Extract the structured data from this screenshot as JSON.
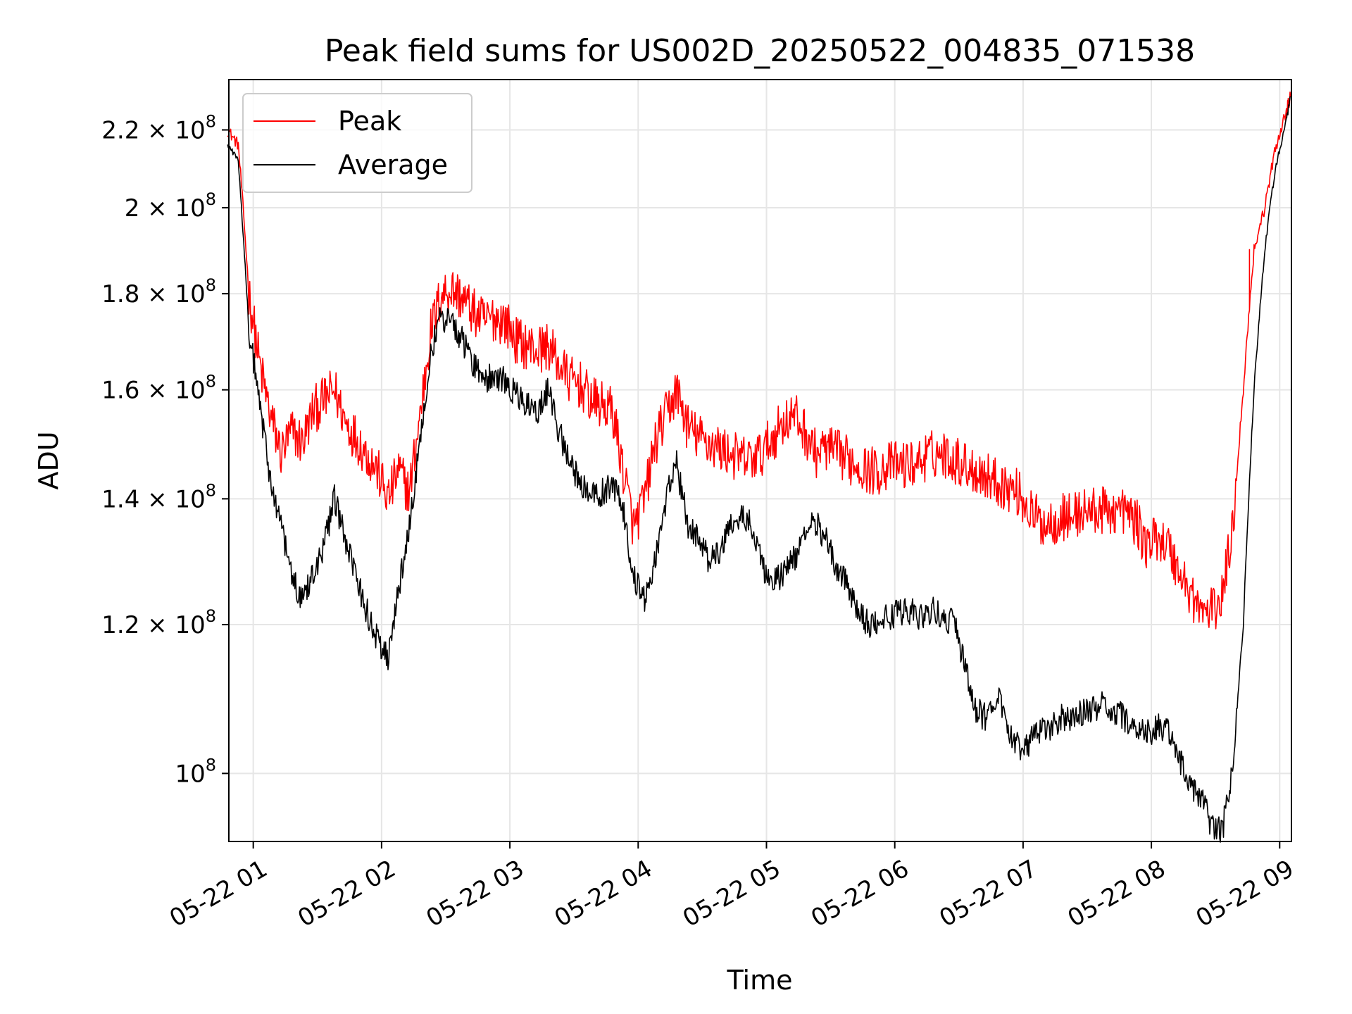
{
  "chart_data": {
    "type": "line",
    "title": "Peak field sums for US002D_20250522_004835_071538",
    "xlabel": "Time",
    "ylabel": "ADU",
    "yscale": "log",
    "ylim": [
      92000000,
      234000000
    ],
    "xlim": [
      "2025-05-22 00:48:35",
      "2025-05-22 09:05:30"
    ],
    "grid": true,
    "legend_position": "upper left",
    "x_ticks": [
      "05-22 01",
      "05-22 02",
      "05-22 03",
      "05-22 04",
      "05-22 05",
      "05-22 06",
      "05-22 07",
      "05-22 08",
      "05-22 09"
    ],
    "y_ticks": [
      {
        "value": 100000000,
        "mant": "",
        "base": "10",
        "exp": "8"
      },
      {
        "value": 120000000,
        "mant": "1.2 × ",
        "base": "10",
        "exp": "8"
      },
      {
        "value": 140000000,
        "mant": "1.4 × ",
        "base": "10",
        "exp": "8"
      },
      {
        "value": 160000000,
        "mant": "1.6 × ",
        "base": "10",
        "exp": "8"
      },
      {
        "value": 180000000,
        "mant": "1.8 × ",
        "base": "10",
        "exp": "8"
      },
      {
        "value": 200000000,
        "mant": "2 × ",
        "base": "10",
        "exp": "8"
      },
      {
        "value": 220000000,
        "mant": "2.2 × ",
        "base": "10",
        "exp": "8"
      }
    ],
    "x": [
      "00:48",
      "00:53",
      "00:58",
      "01:03",
      "01:08",
      "01:13",
      "01:18",
      "01:23",
      "01:28",
      "01:33",
      "01:38",
      "01:43",
      "01:48",
      "01:53",
      "01:58",
      "02:03",
      "02:08",
      "02:13",
      "02:18",
      "02:23",
      "02:28",
      "02:33",
      "02:38",
      "02:43",
      "02:48",
      "02:53",
      "02:58",
      "03:03",
      "03:08",
      "03:13",
      "03:18",
      "03:23",
      "03:28",
      "03:33",
      "03:38",
      "03:43",
      "03:48",
      "03:53",
      "03:58",
      "04:03",
      "04:08",
      "04:13",
      "04:18",
      "04:23",
      "04:28",
      "04:33",
      "04:38",
      "04:43",
      "04:48",
      "04:53",
      "04:58",
      "05:03",
      "05:08",
      "05:13",
      "05:18",
      "05:23",
      "05:28",
      "05:33",
      "05:38",
      "05:43",
      "05:48",
      "05:53",
      "05:58",
      "06:03",
      "06:08",
      "06:13",
      "06:18",
      "06:23",
      "06:28",
      "06:33",
      "06:38",
      "06:43",
      "06:48",
      "06:53",
      "06:58",
      "07:03",
      "07:08",
      "07:13",
      "07:18",
      "07:23",
      "07:28",
      "07:33",
      "07:38",
      "07:43",
      "07:48",
      "07:53",
      "07:58",
      "08:03",
      "08:08",
      "08:13",
      "08:18",
      "08:23",
      "08:28",
      "08:33",
      "08:38",
      "08:43",
      "08:48",
      "08:53",
      "08:58",
      "09:03",
      "09:05"
    ],
    "series": [
      {
        "name": "Peak",
        "color": "#ff0000",
        "values": [
          220000000,
          216000000,
          180000000,
          165000000,
          155000000,
          148000000,
          152000000,
          150000000,
          156000000,
          158000000,
          160000000,
          154000000,
          151000000,
          148000000,
          145000000,
          140000000,
          145000000,
          141000000,
          155000000,
          172000000,
          180000000,
          181000000,
          179000000,
          176000000,
          174000000,
          175000000,
          174000000,
          170000000,
          169000000,
          168000000,
          169000000,
          165000000,
          162000000,
          161000000,
          158000000,
          157000000,
          156000000,
          145000000,
          135000000,
          140000000,
          150000000,
          155000000,
          160000000,
          153000000,
          151000000,
          150000000,
          149000000,
          148000000,
          147000000,
          147000000,
          148000000,
          151000000,
          154000000,
          155000000,
          152000000,
          148000000,
          149000000,
          148000000,
          147000000,
          146000000,
          145000000,
          145000000,
          146000000,
          146000000,
          146000000,
          147000000,
          148000000,
          148000000,
          147000000,
          146000000,
          145000000,
          144000000,
          143000000,
          142000000,
          141000000,
          138000000,
          136000000,
          136000000,
          137000000,
          137000000,
          138000000,
          138000000,
          138000000,
          138000000,
          138000000,
          136000000,
          132000000,
          134000000,
          132000000,
          128000000,
          125000000,
          122000000,
          122000000,
          124000000,
          135000000,
          160000000,
          190000000,
          200000000,
          215000000,
          225000000,
          229000000
        ]
      },
      {
        "name": "Average",
        "color": "#000000",
        "values": [
          216000000,
          212000000,
          172000000,
          157000000,
          143000000,
          136000000,
          127000000,
          124000000,
          128000000,
          132000000,
          140000000,
          133000000,
          127000000,
          122000000,
          118000000,
          115000000,
          125000000,
          135000000,
          150000000,
          168000000,
          175000000,
          174000000,
          170000000,
          165000000,
          162000000,
          163000000,
          162000000,
          159000000,
          157000000,
          156000000,
          160000000,
          152000000,
          146000000,
          143000000,
          141000000,
          141000000,
          143000000,
          138000000,
          127000000,
          124000000,
          130000000,
          140000000,
          146000000,
          136000000,
          133000000,
          130000000,
          131000000,
          136000000,
          137000000,
          136000000,
          129000000,
          126000000,
          128000000,
          130000000,
          134000000,
          136000000,
          133000000,
          128000000,
          126000000,
          122000000,
          120000000,
          121000000,
          121000000,
          122000000,
          122000000,
          121000000,
          122000000,
          121000000,
          120000000,
          114000000,
          108000000,
          107000000,
          110000000,
          106000000,
          103000000,
          104000000,
          105000000,
          106000000,
          107000000,
          107000000,
          108000000,
          108000000,
          109000000,
          108000000,
          107000000,
          106000000,
          105000000,
          106000000,
          105000000,
          102000000,
          98000000,
          97000000,
          94000000,
          93000000,
          100000000,
          120000000,
          160000000,
          190000000,
          210000000,
          222000000,
          229000000
        ]
      }
    ],
    "spike": {
      "series": "Peak",
      "x": "08:46",
      "value": 190000000
    }
  }
}
